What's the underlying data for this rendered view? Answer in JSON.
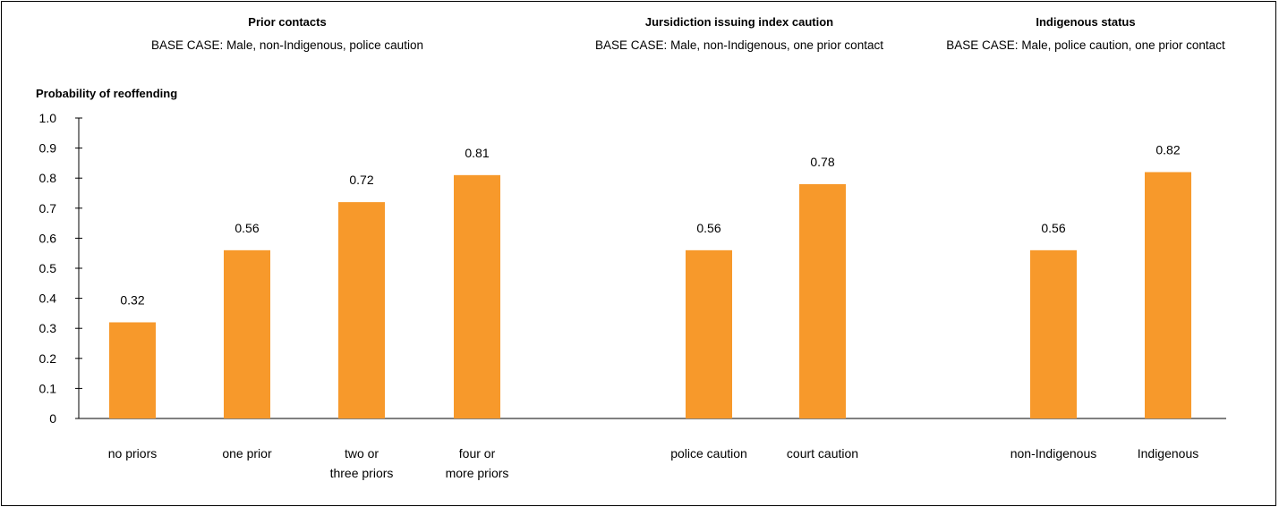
{
  "chart_data": {
    "type": "bar",
    "ylabel": "Probability of reoffending",
    "ylim": [
      0,
      1.0
    ],
    "yticks": [
      "0",
      "0.1",
      "0.2",
      "0.3",
      "0.4",
      "0.5",
      "0.6",
      "0.7",
      "0.8",
      "0.9",
      "1.0"
    ],
    "grid": false,
    "bar_color": "#F7992B",
    "groups": [
      {
        "title": "Prior contacts",
        "subtitle": "BASE CASE: Male, non-Indigenous, police caution",
        "categories": [
          [
            "no priors"
          ],
          [
            "one prior"
          ],
          [
            "two or",
            "three priors"
          ],
          [
            "four or",
            "more priors"
          ]
        ],
        "values": [
          0.32,
          0.56,
          0.72,
          0.81
        ],
        "labels": [
          "0.32",
          "0.56",
          "0.72",
          "0.81"
        ]
      },
      {
        "title": "Jursidiction issuing index caution",
        "subtitle": "BASE CASE: Male, non-Indigenous, one prior contact",
        "categories": [
          [
            "police caution"
          ],
          [
            "court caution"
          ]
        ],
        "values": [
          0.56,
          0.78
        ],
        "labels": [
          "0.56",
          "0.78"
        ]
      },
      {
        "title": "Indigenous status",
        "subtitle": "BASE CASE: Male, police caution, one prior contact",
        "categories": [
          [
            "non-Indigenous"
          ],
          [
            "Indigenous"
          ]
        ],
        "values": [
          0.56,
          0.82
        ],
        "labels": [
          "0.56",
          "0.82"
        ]
      }
    ]
  }
}
